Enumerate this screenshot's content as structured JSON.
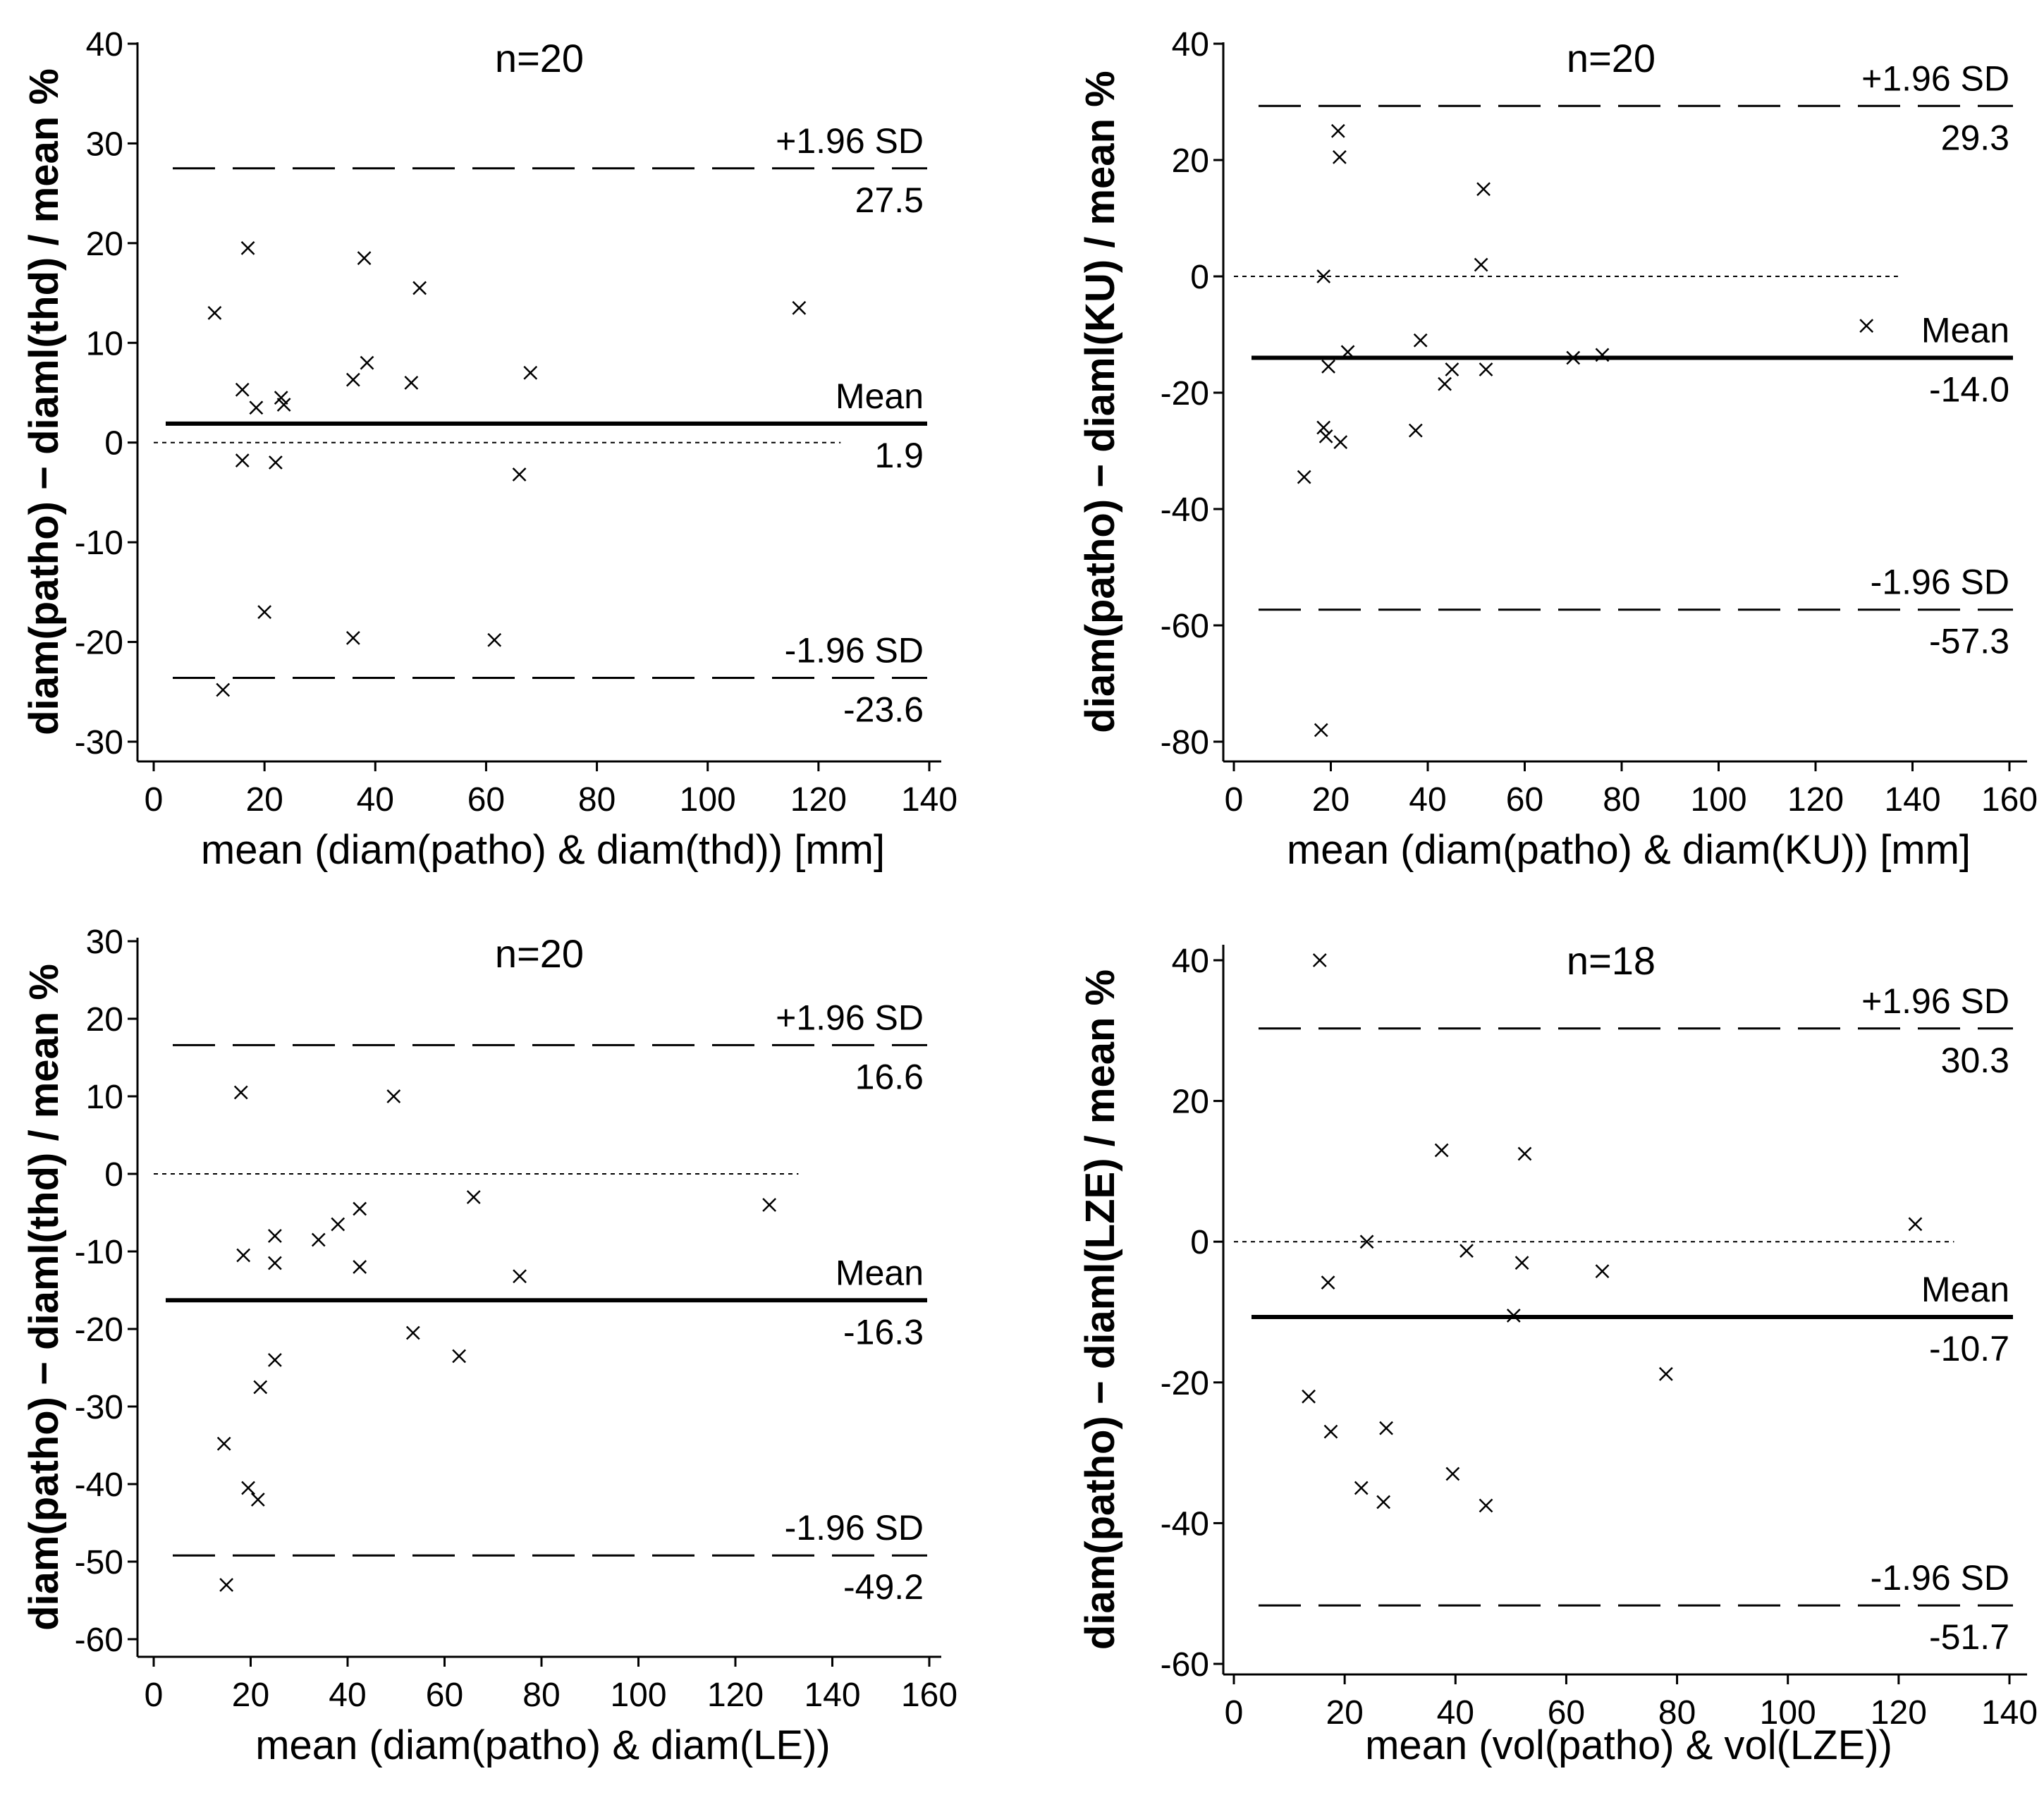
{
  "chart_data": [
    {
      "type": "scatter",
      "title": "n=20",
      "xlabel": "mean (diam(patho) & diam(thd)) [mm]",
      "ylabel": "diam(patho) − diaml(thd) / mean %",
      "xlim": [
        0,
        140
      ],
      "ylim": [
        -30,
        40
      ],
      "xticks": [
        0,
        20,
        40,
        60,
        80,
        100,
        120,
        140
      ],
      "yticks": [
        -30,
        -20,
        -10,
        0,
        10,
        20,
        30,
        40
      ],
      "zero_line_end": 124,
      "mean": {
        "value": 1.9,
        "label": "Mean",
        "value_label": "1.9"
      },
      "upper": {
        "value": 27.5,
        "label": "+1.96 SD",
        "value_label": "27.5"
      },
      "lower": {
        "value": -23.6,
        "label": "-1.96 SD",
        "value_label": "-23.6"
      },
      "points": [
        [
          11,
          13
        ],
        [
          17,
          19.5
        ],
        [
          16,
          5.3
        ],
        [
          18.5,
          3.5
        ],
        [
          23,
          4.5
        ],
        [
          23.5,
          3.8
        ],
        [
          16,
          -1.8
        ],
        [
          22,
          -2
        ],
        [
          20,
          -17
        ],
        [
          12.5,
          -24.8
        ],
        [
          36,
          -19.6
        ],
        [
          36,
          6.3
        ],
        [
          38,
          18.5
        ],
        [
          38.5,
          8
        ],
        [
          46.5,
          6
        ],
        [
          48,
          15.5
        ],
        [
          61.5,
          -19.8
        ],
        [
          66,
          -3.2
        ],
        [
          68,
          7
        ],
        [
          116.5,
          13.5
        ]
      ]
    },
    {
      "type": "scatter",
      "title": "n=20",
      "xlabel": "mean (diam(patho) & diam(KU)) [mm]",
      "ylabel": "diam(patho) − diaml(KU) / mean %",
      "xlim": [
        0,
        160
      ],
      "ylim": [
        -80,
        40
      ],
      "xticks": [
        0,
        20,
        40,
        60,
        80,
        100,
        120,
        140,
        160
      ],
      "yticks": [
        -80,
        -60,
        -40,
        -20,
        0,
        20,
        40
      ],
      "zero_line_end": 137,
      "mean": {
        "value": -14.0,
        "label": "Mean",
        "value_label": "-14.0"
      },
      "upper": {
        "value": 29.3,
        "label": "+1.96 SD",
        "value_label": "29.3"
      },
      "lower": {
        "value": -57.3,
        "label": "-1.96 SD",
        "value_label": "-57.3"
      },
      "points": [
        [
          21.5,
          25
        ],
        [
          21.8,
          20.5
        ],
        [
          18.5,
          0
        ],
        [
          51.5,
          15
        ],
        [
          51,
          2
        ],
        [
          19.5,
          -15.5
        ],
        [
          23.5,
          -13
        ],
        [
          38.5,
          -11
        ],
        [
          45,
          -16
        ],
        [
          43.5,
          -18.5
        ],
        [
          52,
          -16
        ],
        [
          18.5,
          -26
        ],
        [
          19,
          -27.5
        ],
        [
          22,
          -28.5
        ],
        [
          37.5,
          -26.5
        ],
        [
          14.5,
          -34.5
        ],
        [
          18,
          -78
        ],
        [
          70,
          -14
        ],
        [
          76,
          -13.5
        ],
        [
          130.5,
          -8.5
        ]
      ]
    },
    {
      "type": "scatter",
      "title": "n=20",
      "xlabel": "mean (diam(patho) & diam(LE))",
      "ylabel": "diam(patho) − diaml(thd) / mean %",
      "xlim": [
        0,
        160
      ],
      "ylim": [
        -60,
        30
      ],
      "xticks": [
        0,
        20,
        40,
        60,
        80,
        100,
        120,
        140,
        160
      ],
      "yticks": [
        -60,
        -50,
        -40,
        -30,
        -20,
        -10,
        0,
        10,
        20,
        30
      ],
      "zero_line_end": 133,
      "mean": {
        "value": -16.3,
        "label": "Mean",
        "value_label": "-16.3"
      },
      "upper": {
        "value": 16.6,
        "label": "+1.96 SD",
        "value_label": "16.6"
      },
      "lower": {
        "value": -49.2,
        "label": "-1.96 SD",
        "value_label": "-49.2"
      },
      "points": [
        [
          18,
          10.5
        ],
        [
          49.5,
          10
        ],
        [
          18.5,
          -10.5
        ],
        [
          25,
          -8
        ],
        [
          25,
          -11.5
        ],
        [
          34,
          -8.5
        ],
        [
          38,
          -6.5
        ],
        [
          42.5,
          -4.5
        ],
        [
          42.5,
          -12
        ],
        [
          66,
          -3
        ],
        [
          75.5,
          -13.2
        ],
        [
          127,
          -4
        ],
        [
          53.5,
          -20.5
        ],
        [
          63,
          -23.5
        ],
        [
          25,
          -24
        ],
        [
          22,
          -27.5
        ],
        [
          14.5,
          -34.8
        ],
        [
          19.5,
          -40.5
        ],
        [
          21.5,
          -42
        ],
        [
          15,
          -53
        ]
      ]
    },
    {
      "type": "scatter",
      "title": "n=18",
      "xlabel": "mean (vol(patho) & vol(LZE))",
      "ylabel": "diam(patho) − diaml(LZE) / mean %",
      "xlim": [
        0,
        140
      ],
      "ylim": [
        -60,
        40
      ],
      "xticks": [
        0,
        20,
        40,
        60,
        80,
        100,
        120,
        140
      ],
      "yticks": [
        -60,
        -40,
        -20,
        0,
        20,
        40
      ],
      "zero_line_end": 130,
      "mean": {
        "value": -10.7,
        "label": "Mean",
        "value_label": "-10.7"
      },
      "upper": {
        "value": 30.3,
        "label": "+1.96 SD",
        "value_label": "30.3"
      },
      "lower": {
        "value": -51.7,
        "label": "-1.96 SD",
        "value_label": "-51.7"
      },
      "points": [
        [
          15.5,
          40
        ],
        [
          37.5,
          13
        ],
        [
          52.5,
          12.5
        ],
        [
          24,
          0
        ],
        [
          17,
          -5.8
        ],
        [
          42,
          -1.3
        ],
        [
          52,
          -3
        ],
        [
          66.5,
          -4.2
        ],
        [
          123,
          2.5
        ],
        [
          50.5,
          -10.5
        ],
        [
          78,
          -18.8
        ],
        [
          13.5,
          -22
        ],
        [
          17.5,
          -27
        ],
        [
          27.5,
          -26.5
        ],
        [
          23,
          -35
        ],
        [
          27,
          -37
        ],
        [
          39.5,
          -33
        ],
        [
          45.5,
          -37.5
        ]
      ]
    }
  ]
}
